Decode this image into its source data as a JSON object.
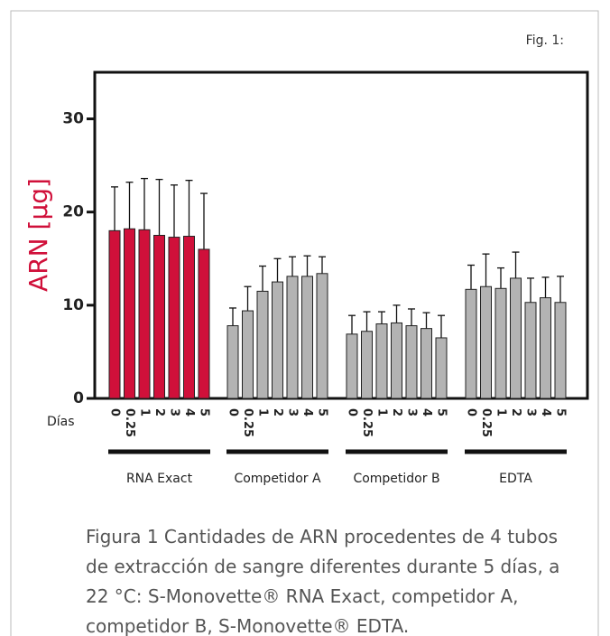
{
  "chart_data": {
    "type": "bar",
    "figure_label": "Fig. 1:",
    "y_label": "ARN [µg]",
    "x_label": "Días",
    "categories": [
      "0",
      "0.25",
      "1",
      "2",
      "3",
      "4",
      "5"
    ],
    "series": [
      {
        "name": "RNA Exact",
        "color": "#d0103a",
        "values": [
          18.0,
          18.2,
          18.1,
          17.5,
          17.3,
          17.4,
          16.0
        ],
        "errors": [
          4.7,
          5.0,
          5.5,
          6.0,
          5.6,
          6.0,
          6.0
        ]
      },
      {
        "name": "Competidor A",
        "color": "#b3b3b3",
        "values": [
          7.8,
          9.4,
          11.5,
          12.5,
          13.1,
          13.1,
          13.4
        ],
        "errors": [
          1.9,
          2.6,
          2.7,
          2.5,
          2.1,
          2.2,
          1.8
        ]
      },
      {
        "name": "Competidor B",
        "color": "#b3b3b3",
        "values": [
          6.9,
          7.2,
          8.0,
          8.1,
          7.8,
          7.5,
          6.5
        ],
        "errors": [
          2.0,
          2.1,
          1.3,
          1.9,
          1.8,
          1.7,
          2.4
        ]
      },
      {
        "name": "EDTA",
        "color": "#b3b3b3",
        "values": [
          11.7,
          12.0,
          11.8,
          12.9,
          10.3,
          10.8,
          10.3
        ],
        "errors": [
          2.6,
          3.5,
          2.2,
          2.8,
          2.6,
          2.2,
          2.8
        ]
      }
    ],
    "ylim": [
      0,
      35
    ],
    "yticks": [
      0,
      10,
      20,
      30
    ],
    "caption": "Figura 1 Cantidades de ARN procedentes de 4 tubos de extracción de sangre diferentes durante 5 días, a 22 °C: S-Monovette® RNA Exact, competidor A, competidor B, S-Monovette® EDTA."
  }
}
